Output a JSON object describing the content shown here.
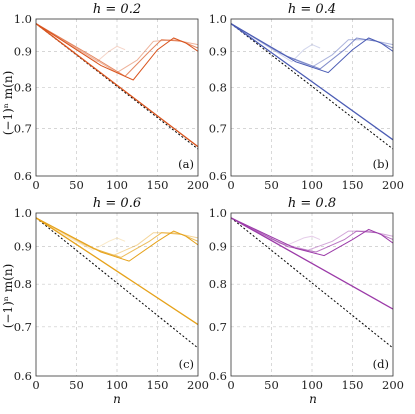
{
  "figure": {
    "ylabel": "(−1)ⁿ m(n)",
    "xlabel": "n"
  },
  "chart_data": [
    {
      "type": "line",
      "title": "h = 0.2",
      "panel_label": "(a)",
      "color": "#d9541e",
      "xlim": [
        0,
        200
      ],
      "ylim": [
        0.6,
        1.0
      ],
      "y_scale": "log",
      "x_ticks": [
        "0",
        "50",
        "100",
        "150",
        "200"
      ],
      "y_ticks": [
        "0.6",
        "0.7",
        "0.8",
        "0.9",
        "1.0"
      ],
      "reference_line": {
        "style": "dotted",
        "color": "#000000",
        "x": [
          0,
          200
        ],
        "y": [
          0.985,
          0.655
        ]
      },
      "main_line": {
        "x": [
          0,
          200
        ],
        "y": [
          0.985,
          0.66
        ]
      },
      "revival_curves": [
        {
          "x": [
            0,
            45,
            75,
            90,
            100,
            110
          ],
          "y": [
            0.985,
            0.915,
            0.87,
            0.9,
            0.915,
            0.905
          ],
          "opacity": 0.25
        },
        {
          "x": [
            0,
            60,
            100,
            125,
            145,
            170,
            200
          ],
          "y": [
            0.985,
            0.895,
            0.84,
            0.875,
            0.93,
            0.935,
            0.92
          ],
          "opacity": 0.45
        },
        {
          "x": [
            0,
            70,
            110,
            140,
            155,
            180,
            200
          ],
          "y": [
            0.985,
            0.885,
            0.83,
            0.9,
            0.935,
            0.93,
            0.91
          ],
          "opacity": 0.7
        },
        {
          "x": [
            0,
            80,
            120,
            150,
            170,
            185,
            200
          ],
          "y": [
            0.985,
            0.86,
            0.82,
            0.905,
            0.94,
            0.925,
            0.9
          ],
          "opacity": 1.0
        }
      ]
    },
    {
      "type": "line",
      "title": "h = 0.4",
      "panel_label": "(b)",
      "color": "#4a5bb4",
      "xlim": [
        0,
        200
      ],
      "ylim": [
        0.6,
        1.0
      ],
      "y_scale": "log",
      "x_ticks": [
        "0",
        "50",
        "100",
        "150",
        "200"
      ],
      "y_ticks": [
        "0.6",
        "0.7",
        "0.8",
        "0.9",
        "1.0"
      ],
      "reference_line": {
        "style": "dotted",
        "color": "#000000",
        "x": [
          0,
          200
        ],
        "y": [
          0.985,
          0.655
        ]
      },
      "main_line": {
        "x": [
          0,
          200
        ],
        "y": [
          0.985,
          0.675
        ]
      },
      "revival_curves": [
        {
          "x": [
            0,
            45,
            75,
            90,
            100,
            110
          ],
          "y": [
            0.985,
            0.915,
            0.87,
            0.905,
            0.92,
            0.91
          ],
          "opacity": 0.25
        },
        {
          "x": [
            0,
            60,
            100,
            125,
            145,
            170,
            200
          ],
          "y": [
            0.985,
            0.895,
            0.855,
            0.89,
            0.935,
            0.935,
            0.92
          ],
          "opacity": 0.45
        },
        {
          "x": [
            0,
            70,
            110,
            140,
            155,
            180,
            200
          ],
          "y": [
            0.985,
            0.885,
            0.85,
            0.905,
            0.94,
            0.93,
            0.91
          ],
          "opacity": 0.7
        },
        {
          "x": [
            0,
            80,
            120,
            150,
            170,
            185,
            200
          ],
          "y": [
            0.985,
            0.87,
            0.84,
            0.905,
            0.94,
            0.925,
            0.9
          ],
          "opacity": 1.0
        }
      ]
    },
    {
      "type": "line",
      "title": "h = 0.6",
      "panel_label": "(c)",
      "color": "#e6a21a",
      "xlim": [
        0,
        200
      ],
      "ylim": [
        0.6,
        1.0
      ],
      "y_scale": "log",
      "x_ticks": [
        "0",
        "50",
        "100",
        "150",
        "200"
      ],
      "y_ticks": [
        "0.6",
        "0.7",
        "0.8",
        "0.9",
        "1.0"
      ],
      "reference_line": {
        "style": "dotted",
        "color": "#000000",
        "x": [
          0,
          200
        ],
        "y": [
          0.985,
          0.655
        ]
      },
      "main_line": {
        "x": [
          0,
          200
        ],
        "y": [
          0.985,
          0.705
        ]
      },
      "revival_curves": [
        {
          "x": [
            0,
            45,
            70,
            90,
            100,
            110
          ],
          "y": [
            0.985,
            0.92,
            0.89,
            0.915,
            0.925,
            0.915
          ],
          "opacity": 0.25
        },
        {
          "x": [
            0,
            60,
            95,
            125,
            145,
            170,
            200
          ],
          "y": [
            0.985,
            0.905,
            0.875,
            0.905,
            0.94,
            0.94,
            0.925
          ],
          "opacity": 0.45
        },
        {
          "x": [
            0,
            70,
            105,
            140,
            155,
            180,
            200
          ],
          "y": [
            0.985,
            0.895,
            0.87,
            0.915,
            0.94,
            0.935,
            0.915
          ],
          "opacity": 0.7
        },
        {
          "x": [
            0,
            80,
            115,
            150,
            170,
            185,
            200
          ],
          "y": [
            0.985,
            0.885,
            0.86,
            0.915,
            0.945,
            0.93,
            0.905
          ],
          "opacity": 1.0
        }
      ]
    },
    {
      "type": "line",
      "title": "h = 0.8",
      "panel_label": "(d)",
      "color": "#9b3aa8",
      "xlim": [
        0,
        200
      ],
      "ylim": [
        0.6,
        1.0
      ],
      "y_scale": "log",
      "x_ticks": [
        "0",
        "50",
        "100",
        "150",
        "200"
      ],
      "y_ticks": [
        "0.6",
        "0.7",
        "0.8",
        "0.9",
        "1.0"
      ],
      "reference_line": {
        "style": "dotted",
        "color": "#000000",
        "x": [
          0,
          200
        ],
        "y": [
          0.985,
          0.655
        ]
      },
      "main_line": {
        "x": [
          0,
          200
        ],
        "y": [
          0.985,
          0.74
        ]
      },
      "revival_curves": [
        {
          "x": [
            0,
            45,
            70,
            90,
            100,
            110
          ],
          "y": [
            0.985,
            0.925,
            0.905,
            0.925,
            0.93,
            0.92
          ],
          "opacity": 0.25
        },
        {
          "x": [
            0,
            60,
            95,
            125,
            145,
            170,
            200
          ],
          "y": [
            0.985,
            0.91,
            0.89,
            0.915,
            0.945,
            0.945,
            0.93
          ],
          "opacity": 0.45
        },
        {
          "x": [
            0,
            70,
            105,
            140,
            155,
            180,
            200
          ],
          "y": [
            0.985,
            0.9,
            0.885,
            0.92,
            0.945,
            0.94,
            0.92
          ],
          "opacity": 0.7
        },
        {
          "x": [
            0,
            80,
            115,
            150,
            170,
            185,
            200
          ],
          "y": [
            0.985,
            0.895,
            0.875,
            0.92,
            0.95,
            0.935,
            0.91
          ],
          "opacity": 1.0
        }
      ]
    }
  ]
}
